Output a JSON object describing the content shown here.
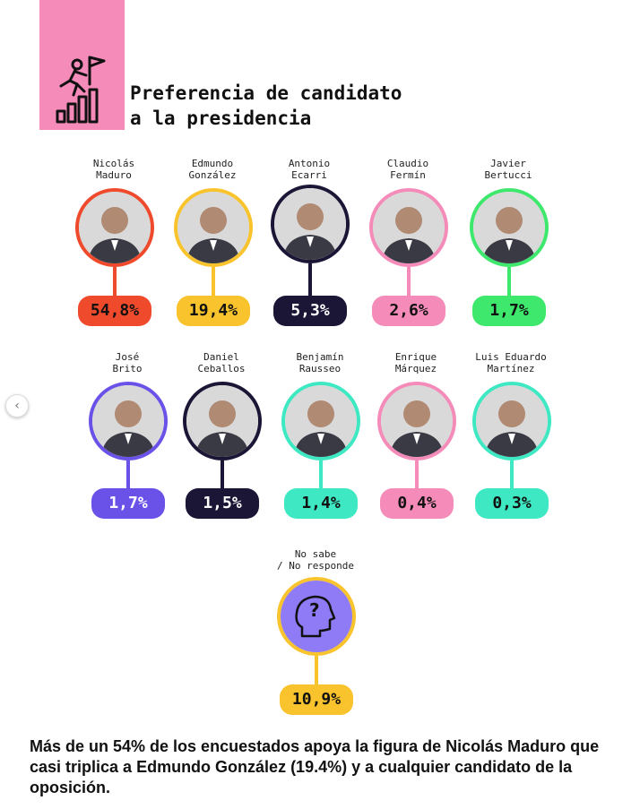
{
  "title": "Preferencia de candidato\na la presidencia",
  "header_icon": "climbing-to-flag-with-bar-chart-icon",
  "nav_icon": "chevron-left-icon",
  "nav_glyph": "‹",
  "footer_text": "Más de un 54% de los encuestados apoya la figura de Nicolás Maduro que casi triplica a Edmundo González (19.4%) y a cualquier candidato de la oposición.",
  "chart_data": {
    "type": "infographic",
    "title": "Preferencia de candidato a la presidencia",
    "unit": "%",
    "entries": [
      {
        "name": "Nicolás\nMaduro",
        "value": 54.8,
        "label": "54,8%",
        "color": "#f04a2d"
      },
      {
        "name": "Edmundo\nGonzález",
        "value": 19.4,
        "label": "19,4%",
        "color": "#f8c32c"
      },
      {
        "name": "Antonio\nEcarri",
        "value": 5.3,
        "label": "5,3%",
        "color": "#1b1536"
      },
      {
        "name": "Claudio\nFermín",
        "value": 2.6,
        "label": "2,6%",
        "color": "#f48bb8"
      },
      {
        "name": "Javier\nBertucci",
        "value": 1.7,
        "label": "1,7%",
        "color": "#3ee86c"
      },
      {
        "name": "José\nBrito",
        "value": 1.7,
        "label": "1,7%",
        "color": "#6a52e8"
      },
      {
        "name": "Daniel\nCeballos",
        "value": 1.5,
        "label": "1,5%",
        "color": "#1b1536"
      },
      {
        "name": "Benjamín\nRausseo",
        "value": 1.4,
        "label": "1,4%",
        "color": "#3ee8c3"
      },
      {
        "name": "Enrique\nMárquez",
        "value": 0.4,
        "label": "0,4%",
        "color": "#f48bb8"
      },
      {
        "name": "Luis Eduardo\nMartínez",
        "value": 0.3,
        "label": "0,3%",
        "color": "#3ee8c3"
      },
      {
        "name": "No sabe\n/ No responde",
        "value": 10.9,
        "label": "10,9%",
        "color": "#f8c32c"
      }
    ]
  }
}
